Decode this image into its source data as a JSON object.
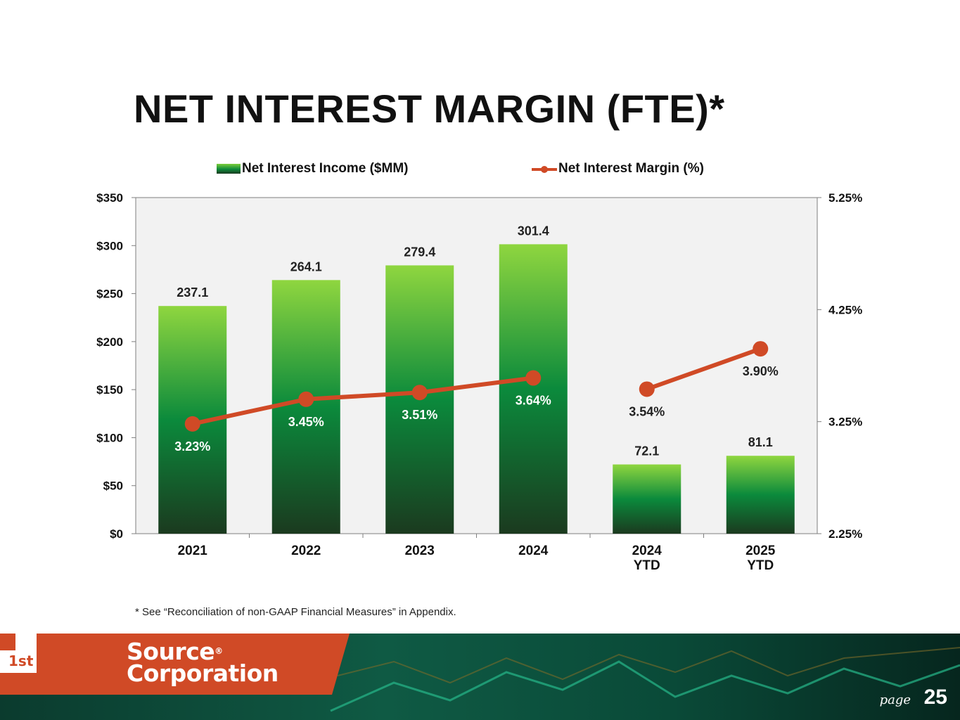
{
  "title": "NET INTEREST MARGIN (FTE)*",
  "footnote": "* See “Reconciliation of non-GAAP Financial Measures” in Appendix.",
  "logo": {
    "line1": "Source",
    "line2": "Corporation",
    "mark_text": "1st",
    "registered": "®"
  },
  "page": {
    "label": "page",
    "number": "25"
  },
  "colors": {
    "bar_top": "#8fd63f",
    "bar_mid": "#0b8a3c",
    "bar_bottom": "#1b3a1f",
    "line": "#d04a26",
    "plot_bg": "#f2f2f2",
    "footer_orange": "#d04a26"
  },
  "chart_data": {
    "type": "bar",
    "categories": [
      [
        "2021"
      ],
      [
        "2022"
      ],
      [
        "2023"
      ],
      [
        "2024"
      ],
      [
        "2024",
        "YTD"
      ],
      [
        "2025",
        "YTD"
      ]
    ],
    "series": [
      {
        "name": "Net Interest Income ($MM)",
        "type": "bar",
        "axis": "left",
        "values": [
          237.1,
          264.1,
          279.4,
          301.4,
          72.1,
          81.1
        ],
        "labels": [
          "237.1",
          "264.1",
          "279.4",
          "301.4",
          "72.1",
          "81.1"
        ]
      },
      {
        "name": "Net Interest Margin (%)",
        "type": "line",
        "axis": "right",
        "segments": [
          [
            0,
            3
          ],
          [
            4,
            5
          ]
        ],
        "values": [
          3.23,
          3.45,
          3.51,
          3.64,
          3.54,
          3.9
        ],
        "labels": [
          "3.23%",
          "3.45%",
          "3.51%",
          "3.64%",
          "3.54%",
          "3.90%"
        ]
      }
    ],
    "y_left": {
      "min": 0,
      "max": 350,
      "ticks": [
        0,
        50,
        100,
        150,
        200,
        250,
        300,
        350
      ],
      "tick_labels": [
        "$0",
        "$50",
        "$100",
        "$150",
        "$200",
        "$250",
        "$300",
        "$350"
      ]
    },
    "y_right": {
      "min": 2.25,
      "max": 5.25,
      "ticks": [
        2.25,
        3.25,
        4.25,
        5.25
      ],
      "tick_labels": [
        "2.25%",
        "3.25%",
        "4.25%",
        "5.25%"
      ]
    },
    "legend": "top",
    "grid": false
  }
}
